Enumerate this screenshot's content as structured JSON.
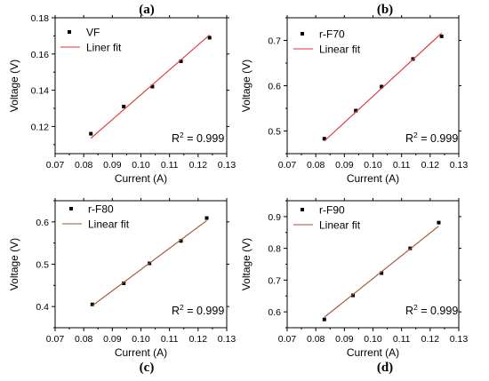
{
  "chart_data": [
    {
      "type": "scatter",
      "panel_label": "(a)",
      "xlabel": "Current (A)",
      "ylabel": "Voltage (V)",
      "xlim": [
        0.07,
        0.13
      ],
      "ylim": [
        0.105,
        0.18
      ],
      "xticks": [
        0.07,
        0.08,
        0.09,
        0.1,
        0.11,
        0.12,
        0.13
      ],
      "xtick_labels": [
        "0.07",
        "0.08",
        "0.09",
        "0.10",
        "0.11",
        "0.12",
        "0.13"
      ],
      "yticks": [
        0.12,
        0.14,
        0.16,
        0.18
      ],
      "ytick_labels": [
        "0.12",
        "0.14",
        "0.16",
        "0.18"
      ],
      "series": [
        {
          "name": "VF",
          "kind": "points",
          "color": "#000000",
          "x": [
            0.0825,
            0.094,
            0.104,
            0.114,
            0.124
          ],
          "y": [
            0.116,
            0.131,
            0.142,
            0.156,
            0.169
          ]
        },
        {
          "name": "Liner fit",
          "kind": "line",
          "color": "#e03030",
          "x": [
            0.0825,
            0.124
          ],
          "y": [
            0.1135,
            0.1705
          ]
        }
      ],
      "annotation": {
        "text": "R",
        "sup": "2",
        "tail": " = 0.999"
      },
      "legend_position": "top-left",
      "grid": false
    },
    {
      "type": "scatter",
      "panel_label": "(b)",
      "xlabel": "Current (A)",
      "ylabel": "Voltage (V)",
      "xlim": [
        0.07,
        0.13
      ],
      "ylim": [
        0.45,
        0.75
      ],
      "xticks": [
        0.07,
        0.08,
        0.09,
        0.1,
        0.11,
        0.12,
        0.13
      ],
      "xtick_labels": [
        "0.07",
        "0.08",
        "0.09",
        "0.10",
        "0.11",
        "0.12",
        "0.13"
      ],
      "yticks": [
        0.5,
        0.6,
        0.7
      ],
      "ytick_labels": [
        "0.5",
        "0.6",
        "0.7"
      ],
      "series": [
        {
          "name": "r-F70",
          "kind": "points",
          "color": "#000000",
          "x": [
            0.083,
            0.094,
            0.103,
            0.114,
            0.124
          ],
          "y": [
            0.483,
            0.545,
            0.598,
            0.659,
            0.709
          ]
        },
        {
          "name": "Linear fit",
          "kind": "line",
          "color": "#e03030",
          "x": [
            0.083,
            0.124
          ],
          "y": [
            0.478,
            0.716
          ]
        }
      ],
      "annotation": {
        "text": "R",
        "sup": "2",
        "tail": " = 0.999"
      },
      "legend_position": "top-left",
      "grid": false
    },
    {
      "type": "scatter",
      "panel_label": "(c)",
      "xlabel": "Current (A)",
      "ylabel": "Voltage (V)",
      "xlim": [
        0.07,
        0.13
      ],
      "ylim": [
        0.35,
        0.65
      ],
      "xticks": [
        0.07,
        0.08,
        0.09,
        0.1,
        0.11,
        0.12,
        0.13
      ],
      "xtick_labels": [
        "0.07",
        "0.08",
        "0.09",
        "0.10",
        "0.11",
        "0.12",
        "0.13"
      ],
      "yticks": [
        0.4,
        0.5,
        0.6
      ],
      "ytick_labels": [
        "0.4",
        "0.5",
        "0.6"
      ],
      "series": [
        {
          "name": "r-F80",
          "kind": "points",
          "color": "#000000",
          "x": [
            0.083,
            0.094,
            0.103,
            0.114,
            0.123
          ],
          "y": [
            0.405,
            0.455,
            0.502,
            0.555,
            0.609
          ]
        },
        {
          "name": "Linear fit",
          "kind": "line",
          "color": "#a0522d",
          "x": [
            0.083,
            0.123
          ],
          "y": [
            0.402,
            0.603
          ]
        }
      ],
      "annotation": {
        "text": "R",
        "sup": "2",
        "tail": " = 0.999"
      },
      "legend_position": "top-left",
      "grid": false
    },
    {
      "type": "scatter",
      "panel_label": "(d)",
      "xlabel": "Current (A)",
      "ylabel": "Voltage (V)",
      "xlim": [
        0.07,
        0.13
      ],
      "ylim": [
        0.55,
        0.95
      ],
      "xticks": [
        0.07,
        0.08,
        0.09,
        0.1,
        0.11,
        0.12,
        0.13
      ],
      "xtick_labels": [
        "0.07",
        "0.08",
        "0.09",
        "0.10",
        "0.11",
        "0.12",
        "0.13"
      ],
      "yticks": [
        0.6,
        0.7,
        0.8,
        0.9
      ],
      "ytick_labels": [
        "0.6",
        "0.7",
        "0.8",
        "0.9"
      ],
      "series": [
        {
          "name": "r-F90",
          "kind": "points",
          "color": "#000000",
          "x": [
            0.083,
            0.093,
            0.103,
            0.113,
            0.123
          ],
          "y": [
            0.576,
            0.652,
            0.722,
            0.8,
            0.881
          ]
        },
        {
          "name": "Linear fit",
          "kind": "line",
          "color": "#a0522d",
          "x": [
            0.083,
            0.123
          ],
          "y": [
            0.583,
            0.87
          ]
        }
      ],
      "annotation": {
        "text": "R",
        "sup": "2",
        "tail": " = 0.999"
      },
      "legend_position": "top-left",
      "grid": false
    }
  ]
}
